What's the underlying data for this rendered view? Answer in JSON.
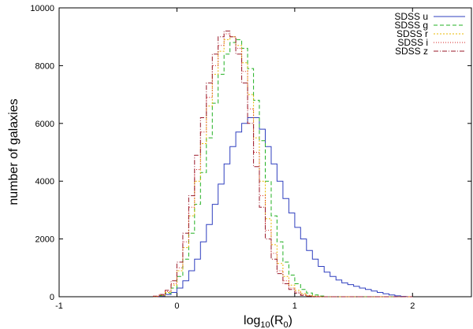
{
  "chart_data": {
    "type": "step",
    "xlabel_base": "log",
    "xlabel_base_sub": "10",
    "xlabel_arg": "(R",
    "xlabel_arg_sub": "0",
    "xlabel_close": ")",
    "ylabel": "number of galaxies",
    "xlim": [
      -1,
      2.5
    ],
    "ylim": [
      0,
      10000
    ],
    "xticks": [
      -1,
      0,
      1,
      2
    ],
    "yticks": [
      0,
      2000,
      4000,
      6000,
      8000,
      10000
    ],
    "xtick_labels": [
      "-1",
      "0",
      "1",
      "2"
    ],
    "ytick_labels": [
      "0",
      "2000",
      "4000",
      "6000",
      "8000",
      "10000"
    ],
    "legend_position": "top-right",
    "bin_edges": [
      -0.2,
      -0.15,
      -0.1,
      -0.05,
      0.0,
      0.05,
      0.1,
      0.15,
      0.2,
      0.25,
      0.3,
      0.35,
      0.4,
      0.45,
      0.5,
      0.55,
      0.6,
      0.65,
      0.7,
      0.75,
      0.8,
      0.85,
      0.9,
      0.95,
      1.0,
      1.05,
      1.1,
      1.15,
      1.2,
      1.25,
      1.3,
      1.35,
      1.4,
      1.45,
      1.5,
      1.55,
      1.6,
      1.65,
      1.7,
      1.75,
      1.8,
      1.85,
      1.9,
      1.95,
      2.0
    ],
    "series": [
      {
        "name": "SDSS u",
        "color": "#2f3fbf",
        "dash": "",
        "values": [
          10,
          30,
          80,
          150,
          300,
          550,
          900,
          1300,
          1900,
          2500,
          3200,
          3900,
          4600,
          5200,
          5700,
          6000,
          6200,
          6200,
          5800,
          5200,
          4600,
          4000,
          3400,
          2900,
          2400,
          2000,
          1600,
          1300,
          1050,
          850,
          700,
          580,
          480,
          420,
          360,
          300,
          250,
          200,
          150,
          100,
          60,
          30,
          10,
          0
        ]
      },
      {
        "name": "SDSS g",
        "color": "#22b022",
        "dash": "5,3",
        "values": [
          10,
          40,
          120,
          300,
          700,
          1300,
          2200,
          3200,
          4300,
          5500,
          6700,
          7700,
          8400,
          8800,
          8900,
          8600,
          7900,
          6800,
          5400,
          4000,
          2800,
          1900,
          1200,
          750,
          450,
          250,
          130,
          60,
          25,
          0,
          0,
          0,
          0,
          0,
          0,
          0,
          0,
          0,
          0,
          0,
          0,
          0,
          0,
          0
        ]
      },
      {
        "name": "SDSS r",
        "color": "#e8b800",
        "dash": "2,2",
        "values": [
          10,
          50,
          150,
          400,
          900,
          1700,
          2800,
          4000,
          5300,
          6600,
          7700,
          8500,
          8900,
          9000,
          8700,
          8100,
          7000,
          5500,
          4000,
          2700,
          1800,
          1150,
          700,
          400,
          220,
          110,
          50,
          20,
          0,
          0,
          0,
          0,
          0,
          0,
          0,
          0,
          0,
          0,
          0,
          0,
          0,
          0,
          0,
          0
        ]
      },
      {
        "name": "SDSS i",
        "color": "#d42020",
        "dash": "1,2",
        "values": [
          10,
          60,
          180,
          450,
          1000,
          1900,
          3100,
          4400,
          5700,
          6900,
          8000,
          8700,
          9100,
          9000,
          8600,
          7800,
          6500,
          5000,
          3500,
          2300,
          1500,
          900,
          550,
          300,
          160,
          80,
          30,
          10,
          0,
          0,
          0,
          0,
          0,
          0,
          0,
          0,
          0,
          0,
          0,
          0,
          0,
          0,
          0,
          0
        ]
      },
      {
        "name": "SDSS z",
        "color": "#9a1a2a",
        "dash": "6,2,1,2",
        "values": [
          20,
          80,
          220,
          550,
          1200,
          2200,
          3500,
          4900,
          6200,
          7400,
          8400,
          9000,
          9200,
          9000,
          8400,
          7400,
          6000,
          4500,
          3100,
          2000,
          1300,
          800,
          450,
          250,
          120,
          50,
          20,
          0,
          0,
          0,
          0,
          0,
          0,
          0,
          0,
          0,
          0,
          0,
          0,
          0,
          0,
          0,
          0,
          0
        ]
      }
    ]
  }
}
